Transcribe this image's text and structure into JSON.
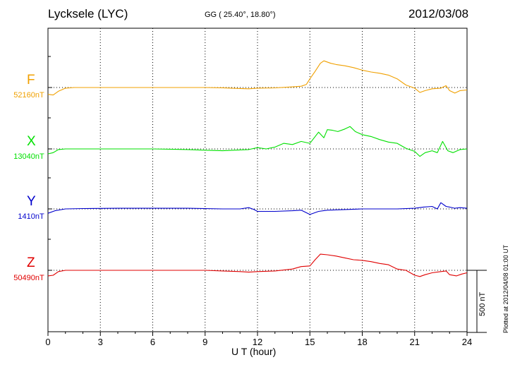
{
  "header": {
    "station": "Lycksele (LYC)",
    "coordinates": "GG ( 25.40°,  18.80°)",
    "date": "2012/03/08"
  },
  "footer": {
    "plotted": "Plotted at 2012/04/08 01:00 UT"
  },
  "scale_bar": {
    "label": "500 nT",
    "value_nT": 500
  },
  "colors": {
    "F": "#f0a000",
    "X": "#00e000",
    "Y": "#0000cc",
    "Z": "#e00000"
  },
  "chart_data": {
    "type": "line",
    "title": "Lycksele (LYC)",
    "xlabel": "U T (hour)",
    "ylabel": "",
    "xlim": [
      0,
      24
    ],
    "xticks": [
      0,
      3,
      6,
      9,
      12,
      15,
      18,
      21,
      24
    ],
    "xtick_labels": [
      "0",
      "3",
      "6",
      "9",
      "12",
      "15",
      "18",
      "21",
      "24"
    ],
    "grid": true,
    "units": "nT",
    "series": [
      {
        "name": "F",
        "baseline_label": "52160nT",
        "color": "#f0a000",
        "points": [
          [
            0,
            -55
          ],
          [
            0.3,
            -60
          ],
          [
            0.6,
            -30
          ],
          [
            1,
            -5
          ],
          [
            1.5,
            0
          ],
          [
            3,
            0
          ],
          [
            6,
            0
          ],
          [
            9,
            0
          ],
          [
            10,
            -2
          ],
          [
            11,
            -8
          ],
          [
            11.5,
            -10
          ],
          [
            12,
            -5
          ],
          [
            13,
            -3
          ],
          [
            14,
            5
          ],
          [
            14.5,
            10
          ],
          [
            14.8,
            25
          ],
          [
            15,
            70
          ],
          [
            15.3,
            130
          ],
          [
            15.6,
            195
          ],
          [
            15.8,
            215
          ],
          [
            16.2,
            195
          ],
          [
            16.5,
            185
          ],
          [
            17,
            175
          ],
          [
            17.5,
            160
          ],
          [
            18,
            140
          ],
          [
            18.5,
            125
          ],
          [
            19,
            115
          ],
          [
            19.5,
            100
          ],
          [
            20,
            70
          ],
          [
            20.5,
            20
          ],
          [
            21,
            -5
          ],
          [
            21.3,
            -40
          ],
          [
            21.6,
            -25
          ],
          [
            22,
            -10
          ],
          [
            22.5,
            -5
          ],
          [
            22.8,
            15
          ],
          [
            23,
            -25
          ],
          [
            23.3,
            -45
          ],
          [
            23.6,
            -25
          ],
          [
            24,
            -20
          ]
        ]
      },
      {
        "name": "X",
        "baseline_label": "13040nT",
        "color": "#00e000",
        "points": [
          [
            0,
            -40
          ],
          [
            0.3,
            -30
          ],
          [
            0.6,
            -5
          ],
          [
            1,
            0
          ],
          [
            3,
            0
          ],
          [
            6,
            0
          ],
          [
            8,
            -5
          ],
          [
            9,
            -10
          ],
          [
            10,
            -15
          ],
          [
            11,
            -8
          ],
          [
            11.5,
            -5
          ],
          [
            12,
            10
          ],
          [
            12.5,
            0
          ],
          [
            13,
            15
          ],
          [
            13.5,
            45
          ],
          [
            14,
            35
          ],
          [
            14.5,
            60
          ],
          [
            15,
            45
          ],
          [
            15.5,
            135
          ],
          [
            15.8,
            90
          ],
          [
            16,
            155
          ],
          [
            16.3,
            150
          ],
          [
            16.6,
            140
          ],
          [
            17,
            160
          ],
          [
            17.3,
            180
          ],
          [
            17.6,
            140
          ],
          [
            18,
            115
          ],
          [
            18.5,
            100
          ],
          [
            19,
            75
          ],
          [
            19.5,
            55
          ],
          [
            20,
            45
          ],
          [
            20.5,
            5
          ],
          [
            21,
            -20
          ],
          [
            21.3,
            -60
          ],
          [
            21.6,
            -30
          ],
          [
            22,
            -15
          ],
          [
            22.3,
            -30
          ],
          [
            22.6,
            60
          ],
          [
            22.9,
            -15
          ],
          [
            23.2,
            -30
          ],
          [
            23.6,
            -5
          ],
          [
            24,
            0
          ]
        ]
      },
      {
        "name": "Y",
        "baseline_label": "1410nT",
        "color": "#0000cc",
        "points": [
          [
            0,
            -35
          ],
          [
            0.4,
            -15
          ],
          [
            1,
            0
          ],
          [
            2,
            3
          ],
          [
            4,
            5
          ],
          [
            6,
            5
          ],
          [
            8,
            5
          ],
          [
            10,
            0
          ],
          [
            11,
            0
          ],
          [
            11.5,
            10
          ],
          [
            11.8,
            -5
          ],
          [
            12,
            -20
          ],
          [
            13,
            -20
          ],
          [
            14,
            -15
          ],
          [
            14.5,
            -10
          ],
          [
            15,
            -45
          ],
          [
            15.5,
            -20
          ],
          [
            16,
            -10
          ],
          [
            17,
            -5
          ],
          [
            18,
            0
          ],
          [
            19,
            0
          ],
          [
            20,
            0
          ],
          [
            21,
            5
          ],
          [
            21.5,
            15
          ],
          [
            22,
            20
          ],
          [
            22.3,
            0
          ],
          [
            22.5,
            50
          ],
          [
            22.8,
            20
          ],
          [
            23,
            15
          ],
          [
            23.3,
            5
          ],
          [
            23.6,
            10
          ],
          [
            24,
            5
          ]
        ]
      },
      {
        "name": "Z",
        "baseline_label": "50490nT",
        "color": "#e00000",
        "points": [
          [
            0,
            -45
          ],
          [
            0.3,
            -40
          ],
          [
            0.6,
            -10
          ],
          [
            1,
            0
          ],
          [
            3,
            0
          ],
          [
            6,
            0
          ],
          [
            9,
            0
          ],
          [
            10,
            -5
          ],
          [
            11,
            -10
          ],
          [
            11.5,
            -15
          ],
          [
            12,
            -10
          ],
          [
            13,
            -5
          ],
          [
            14,
            10
          ],
          [
            14.5,
            30
          ],
          [
            15,
            35
          ],
          [
            15.3,
            85
          ],
          [
            15.6,
            130
          ],
          [
            16,
            125
          ],
          [
            16.5,
            115
          ],
          [
            17,
            100
          ],
          [
            17.5,
            85
          ],
          [
            18,
            80
          ],
          [
            18.5,
            70
          ],
          [
            19,
            55
          ],
          [
            19.5,
            45
          ],
          [
            20,
            10
          ],
          [
            20.5,
            0
          ],
          [
            21,
            -40
          ],
          [
            21.3,
            -50
          ],
          [
            21.6,
            -35
          ],
          [
            22,
            -20
          ],
          [
            22.5,
            -10
          ],
          [
            22.8,
            -5
          ],
          [
            23,
            -35
          ],
          [
            23.4,
            -45
          ],
          [
            23.7,
            -30
          ],
          [
            24,
            -20
          ]
        ]
      }
    ]
  }
}
